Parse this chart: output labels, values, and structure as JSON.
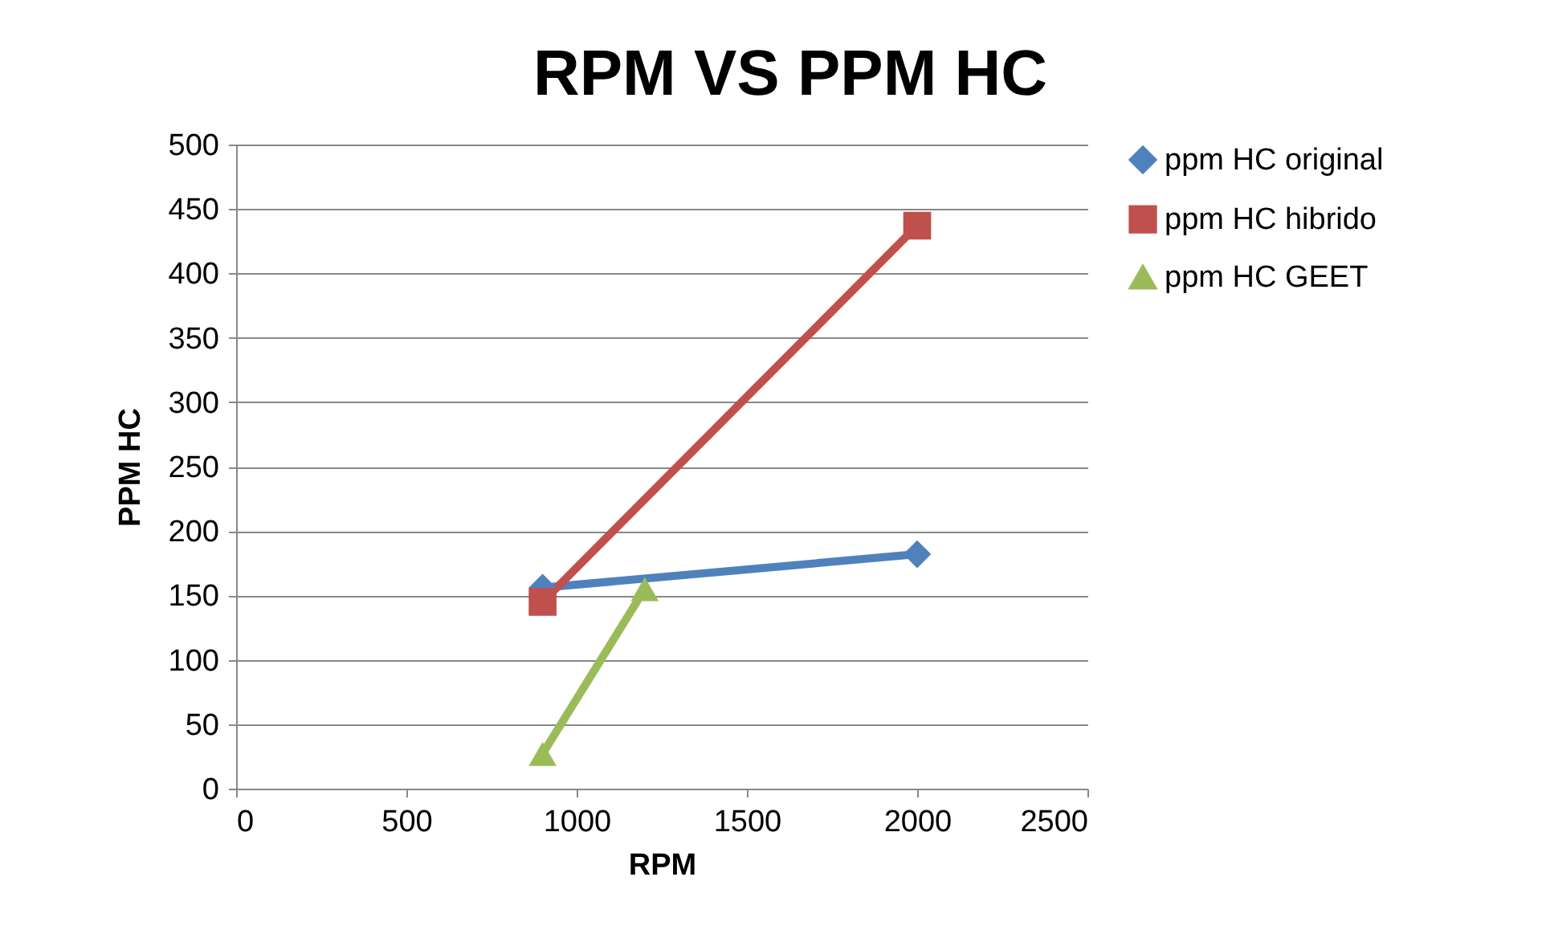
{
  "chart_data": {
    "type": "line",
    "title": "RPM VS PPM HC",
    "xlabel": "RPM",
    "ylabel": "PPM HC",
    "xlim": [
      0,
      2500
    ],
    "xticks": [
      0,
      500,
      1000,
      1500,
      2000,
      2500
    ],
    "ylim": [
      0,
      500
    ],
    "yticks": [
      0,
      50,
      100,
      150,
      200,
      250,
      300,
      350,
      400,
      450,
      500
    ],
    "grid": "y",
    "legend": "right",
    "series": [
      {
        "name": "ppm HC original",
        "color": "#4f81bd",
        "marker": "diamond",
        "x": [
          900,
          2000
        ],
        "values": [
          156,
          182
        ]
      },
      {
        "name": "ppm HC hibrido",
        "color": "#c0504d",
        "marker": "square",
        "x": [
          900,
          2000
        ],
        "values": [
          145,
          437
        ]
      },
      {
        "name": "ppm HC GEET",
        "color": "#9bbb59",
        "marker": "triangle",
        "x": [
          900,
          1200
        ],
        "values": [
          27,
          155
        ]
      }
    ]
  }
}
